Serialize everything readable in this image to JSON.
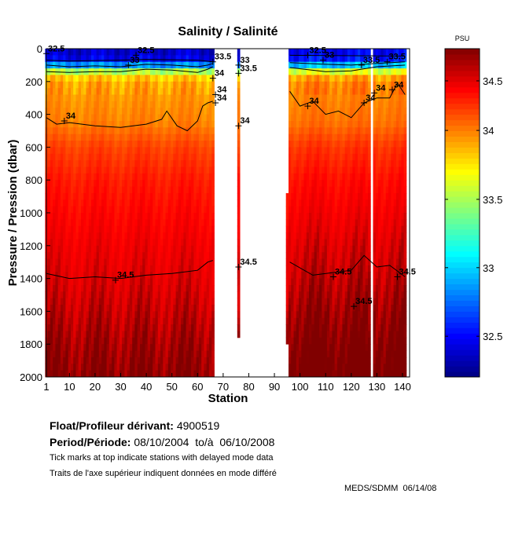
{
  "chart_data": {
    "type": "heatmap",
    "title": "Salinity / Salinité",
    "xlabel": "Station",
    "ylabel": "Pressure / Pression (dbar)",
    "xlim": [
      1,
      142
    ],
    "ylim": [
      2000,
      0
    ],
    "x_ticks": [
      1,
      10,
      20,
      30,
      40,
      50,
      60,
      70,
      80,
      90,
      100,
      110,
      120,
      130,
      140
    ],
    "y_ticks": [
      0,
      200,
      400,
      600,
      800,
      1000,
      1200,
      1400,
      1600,
      1800,
      2000
    ],
    "colorbar": {
      "unit": "PSU",
      "range": [
        32.2,
        34.62
      ],
      "ticks": [
        32.5,
        33,
        33.5,
        34,
        34.5
      ],
      "colormap": "jet"
    },
    "mean_profile": {
      "pressure": [
        0,
        60,
        90,
        110,
        130,
        160,
        200,
        300,
        450,
        600,
        800,
        1000,
        1200,
        1400,
        1600,
        1800,
        2000
      ],
      "salinity": [
        32.35,
        32.45,
        32.7,
        33.0,
        33.4,
        33.75,
        33.9,
        33.95,
        34.0,
        34.2,
        34.33,
        34.4,
        34.46,
        34.5,
        34.54,
        34.58,
        34.61
      ]
    },
    "station_coverage": [
      {
        "from": 1,
        "to": 66,
        "pmin": 0,
        "pmax": 2000
      },
      {
        "from": 76,
        "to": 76,
        "pmin": 0,
        "pmax": 1740
      },
      {
        "from": 95,
        "to": 95,
        "pmin": 880,
        "pmax": 1800
      },
      {
        "from": 96,
        "to": 127,
        "pmin": 0,
        "pmax": 2000
      },
      {
        "from": 129,
        "to": 141,
        "pmin": 0,
        "pmax": 2000
      }
    ],
    "contours": [
      {
        "level": 32.5,
        "label": "32.5",
        "stations": [
          1,
          10,
          30,
          40,
          60,
          66,
          96,
          141
        ],
        "pressure": [
          70,
          75,
          70,
          65,
          70,
          80,
          40,
          45
        ]
      },
      {
        "level": 33,
        "label": "33",
        "stations": [
          1,
          10,
          20,
          30,
          40,
          50,
          60,
          64,
          66,
          96,
          110,
          120,
          130,
          141
        ],
        "pressure": [
          100,
          110,
          105,
          110,
          95,
          100,
          110,
          100,
          90,
          85,
          95,
          100,
          90,
          80
        ]
      },
      {
        "level": 33.5,
        "label": "33.5",
        "stations": [
          1,
          10,
          20,
          30,
          40,
          50,
          60,
          64,
          66,
          96,
          110,
          120,
          130,
          141
        ],
        "pressure": [
          140,
          145,
          140,
          140,
          125,
          130,
          145,
          125,
          110,
          115,
          140,
          135,
          110,
          100
        ]
      },
      {
        "level": 34,
        "label": "34",
        "stations": [
          1,
          5,
          10,
          20,
          30,
          40,
          46,
          48,
          52,
          56,
          60,
          62,
          64,
          66,
          96,
          100,
          105,
          110,
          115,
          120,
          125,
          130,
          135,
          138,
          141
        ],
        "pressure": [
          420,
          460,
          450,
          470,
          480,
          460,
          430,
          380,
          470,
          500,
          440,
          350,
          330,
          320,
          260,
          350,
          320,
          400,
          380,
          420,
          330,
          300,
          300,
          210,
          280
        ]
      },
      {
        "level": 34.5,
        "label": "34.5",
        "stations": [
          1,
          10,
          20,
          30,
          40,
          50,
          60,
          64,
          66,
          96,
          105,
          115,
          120,
          125,
          130,
          135,
          141
        ],
        "pressure": [
          1370,
          1400,
          1390,
          1400,
          1380,
          1370,
          1350,
          1300,
          1290,
          1300,
          1380,
          1360,
          1350,
          1260,
          1330,
          1320,
          1390
        ]
      }
    ],
    "contour_labels": [
      {
        "text": "32.5",
        "station": 1,
        "pressure": 30
      },
      {
        "text": "32.5",
        "station": 36,
        "pressure": 40
      },
      {
        "text": "33",
        "station": 33,
        "pressure": 100
      },
      {
        "text": "33.5",
        "station": 66,
        "pressure": 80
      },
      {
        "text": "34",
        "station": 66,
        "pressure": 180
      },
      {
        "text": "34",
        "station": 67,
        "pressure": 280
      },
      {
        "text": "34",
        "station": 67,
        "pressure": 330
      },
      {
        "text": "34",
        "station": 8,
        "pressure": 440
      },
      {
        "text": "33",
        "station": 76,
        "pressure": 100
      },
      {
        "text": "33.5",
        "station": 76,
        "pressure": 150
      },
      {
        "text": "34",
        "station": 76,
        "pressure": 470
      },
      {
        "text": "34.5",
        "station": 76,
        "pressure": 1330
      },
      {
        "text": "34.5",
        "station": 28,
        "pressure": 1410
      },
      {
        "text": "34",
        "station": 103,
        "pressure": 350
      },
      {
        "text": "33",
        "station": 109,
        "pressure": 70
      },
      {
        "text": "32.5",
        "station": 103,
        "pressure": 40
      },
      {
        "text": "34",
        "station": 125,
        "pressure": 330
      },
      {
        "text": "34",
        "station": 129,
        "pressure": 270
      },
      {
        "text": "34",
        "station": 136,
        "pressure": 250
      },
      {
        "text": "33.5",
        "station": 124,
        "pressure": 100
      },
      {
        "text": "33.5",
        "station": 134,
        "pressure": 80
      },
      {
        "text": "34.5",
        "station": 113,
        "pressure": 1390
      },
      {
        "text": "34.5",
        "station": 121,
        "pressure": 1570
      },
      {
        "text": "34.5",
        "station": 138,
        "pressure": 1390
      }
    ]
  },
  "info": {
    "float_label": "Float/Profileur dérivant:",
    "float_id": "4900519",
    "period_label": "Period/Période:",
    "period_value": "08/10/2004  to/à  06/10/2008",
    "note_en": "Tick marks at top indicate stations with delayed mode data",
    "note_fr": "Traits de l'axe supérieur indiquent données en mode différé",
    "credit": "MEDS/SDMM  06/14/08"
  }
}
